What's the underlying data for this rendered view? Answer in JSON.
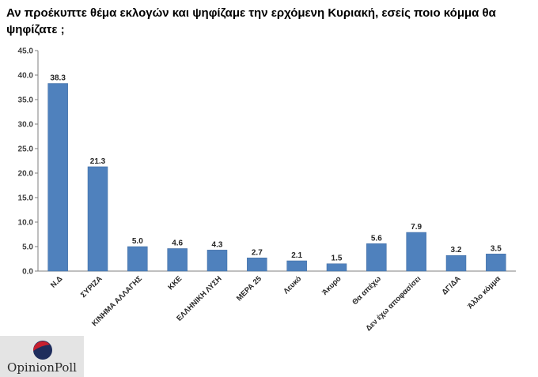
{
  "chart_data": {
    "type": "bar",
    "title": "Αν προέκυπτε θέμα εκλογών και ψηφίζαμε την ερχόμενη Κυριακή, εσείς ποιο κόμμα θα ψηφίζατε ;",
    "categories": [
      "Ν.Δ",
      "ΣΥΡΙΖΑ",
      "ΚΙΝΗΜΑ ΑΛΛΑΓΗΣ",
      "ΚΚΕ",
      "ΕΛΛΗΝΙΚΗ ΛΥΣΗ",
      "ΜΕΡΑ 25",
      "Λευκό",
      "Άκυρο",
      "Θα απέχω",
      "Δεν έχω αποφασίσει",
      "ΔΓ/ΔΑ",
      "Άλλο κόμμα"
    ],
    "values": [
      38.3,
      21.3,
      5.0,
      4.6,
      4.3,
      2.7,
      2.1,
      1.5,
      5.6,
      7.9,
      3.2,
      3.5
    ],
    "value_labels": [
      "38.3",
      "21.3",
      "5.0",
      "4.6",
      "4.3",
      "2.7",
      "2.1",
      "1.5",
      "5.6",
      "7.9",
      "3.2",
      "3.5"
    ],
    "yticks": [
      "0.0",
      "5.0",
      "10.0",
      "15.0",
      "20.0",
      "25.0",
      "30.0",
      "35.0",
      "40.0",
      "45.0"
    ],
    "ylim": [
      0,
      45
    ],
    "xlabel": "",
    "ylabel": "",
    "grid": false,
    "bar_color": "#4f81bd"
  },
  "logo": {
    "text": "OpinionPoll",
    "colors": {
      "red": "#c8202f",
      "navy": "#1f2d5c"
    }
  }
}
